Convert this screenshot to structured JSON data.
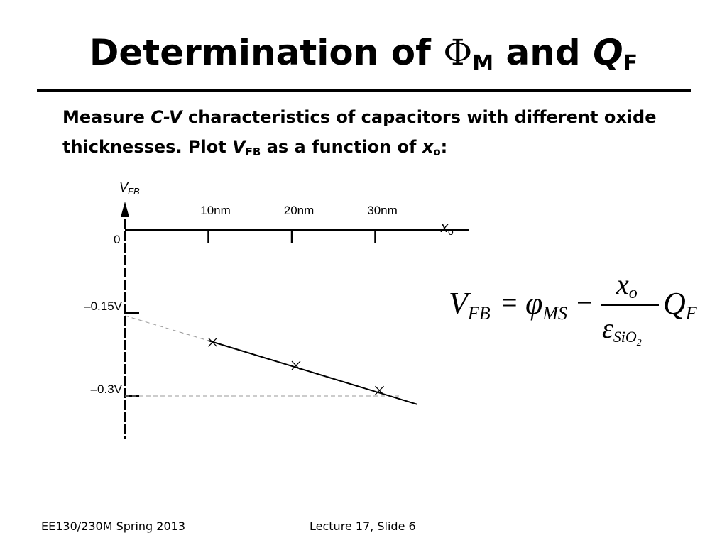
{
  "slide": {
    "title": {
      "prefix": "Determination of ",
      "phi": "Φ",
      "phi_sub": "M",
      "middle": " and ",
      "q": "Q",
      "q_sub": "F"
    },
    "body": {
      "line1_a": "Measure ",
      "cv": "C-V",
      "line1_b": " characteristics of capacitors with different oxide",
      "line2_a": "thicknesses.  Plot ",
      "v": "V",
      "v_sub": "FB",
      "line2_b": " as a function of ",
      "x": "x",
      "x_sub": "o",
      "line2_c": ":"
    },
    "footer": {
      "left": "EE130/230M Spring 2013",
      "center": "Lecture 17, Slide 6"
    },
    "formula": {
      "lhs": "V",
      "lhs_sub": "FB",
      "eq": "=",
      "phi": "φ",
      "phi_sub": "MS",
      "minus": "−",
      "num": "x",
      "num_sub": "o",
      "den": "ε",
      "den_sub": "SiO",
      "den_sub2": "2",
      "q": "Q",
      "q_sub": "F"
    }
  },
  "chart_data": {
    "type": "scatter",
    "x": [
      10,
      20,
      30
    ],
    "y": [
      -0.203,
      -0.245,
      -0.29
    ],
    "x_unit": "nm",
    "y_unit": "V",
    "y_label_main": "V",
    "y_label_sub": "FB",
    "x_label_main": "x",
    "x_label_sub": "o",
    "origin_label": "0",
    "x_ticks": [
      {
        "value": 10,
        "label": "10nm"
      },
      {
        "value": 20,
        "label": "20nm"
      },
      {
        "value": 30,
        "label": "30nm"
      }
    ],
    "y_ticks": [
      {
        "value": -0.15,
        "label": "–0.15V"
      },
      {
        "value": -0.3,
        "label": "–0.3V"
      }
    ],
    "fit_line": {
      "x": [
        10,
        35
      ],
      "y": [
        -0.2,
        -0.315
      ]
    },
    "extrapolation_line": {
      "x": [
        0,
        10
      ],
      "y": [
        -0.155,
        -0.2
      ]
    },
    "reference_line": {
      "x": [
        0,
        33
      ],
      "y": [
        -0.3,
        -0.3
      ]
    },
    "xlim": [
      0,
      35
    ],
    "ylim": [
      -0.35,
      0.1
    ],
    "marker": "x",
    "grid": false
  }
}
